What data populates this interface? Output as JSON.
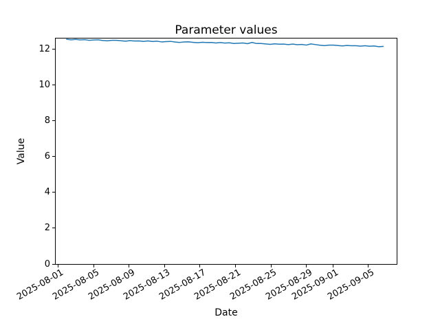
{
  "figure": {
    "background_color": "#ffffff",
    "text_color": "#000000"
  },
  "chart_data": {
    "type": "line",
    "title": "Parameter values",
    "xlabel": "Date",
    "ylabel": "Value",
    "grid": false,
    "legend": false,
    "x_day_reference": "2025-08-01",
    "x_start_date": "2025-08-02",
    "x_end_date": "2025-09-06",
    "xlim_days": [
      -0.23,
      38.22
    ],
    "ylim": [
      0,
      12.615
    ],
    "y_ticks": [
      {
        "value": 0,
        "label": "0"
      },
      {
        "value": 2,
        "label": "2"
      },
      {
        "value": 4,
        "label": "4"
      },
      {
        "value": 6,
        "label": "6"
      },
      {
        "value": 8,
        "label": "8"
      },
      {
        "value": 10,
        "label": "10"
      },
      {
        "value": 12,
        "label": "12"
      }
    ],
    "x_ticks": [
      {
        "day": 0,
        "label": "2025-08-01"
      },
      {
        "day": 4,
        "label": "2025-08-05"
      },
      {
        "day": 8,
        "label": "2025-08-09"
      },
      {
        "day": 12,
        "label": "2025-08-13"
      },
      {
        "day": 16,
        "label": "2025-08-17"
      },
      {
        "day": 20,
        "label": "2025-08-21"
      },
      {
        "day": 24,
        "label": "2025-08-25"
      },
      {
        "day": 28,
        "label": "2025-08-29"
      },
      {
        "day": 31,
        "label": "2025-09-01"
      },
      {
        "day": 35,
        "label": "2025-09-05"
      }
    ],
    "series": [
      {
        "name": "parameter-values-line",
        "color": "#1f77b4",
        "x_days": [
          1.0,
          1.51,
          2.02,
          2.53,
          3.04,
          3.55,
          4.06,
          4.57,
          5.08,
          5.59,
          6.1,
          6.61,
          7.12,
          7.63,
          8.14,
          8.65,
          9.16,
          9.67,
          10.18,
          10.69,
          11.2,
          11.71,
          12.22,
          12.73,
          13.24,
          13.75,
          14.26,
          14.77,
          15.28,
          15.79,
          16.3,
          16.81,
          17.32,
          17.83,
          18.34,
          18.85,
          19.36,
          19.87,
          20.38,
          20.89,
          21.4,
          21.91,
          22.42,
          22.93,
          23.44,
          23.95,
          24.46,
          24.97,
          25.48,
          25.99,
          26.5,
          27.01,
          27.52,
          28.03,
          28.54,
          29.05,
          29.56,
          30.07,
          30.58,
          31.09,
          31.6,
          32.11,
          32.62,
          33.13,
          33.64,
          34.15,
          34.66,
          35.17,
          35.68,
          36.19,
          36.7
        ],
        "values": [
          12.57,
          12.542,
          12.569,
          12.537,
          12.553,
          12.514,
          12.531,
          12.543,
          12.505,
          12.485,
          12.512,
          12.515,
          12.489,
          12.468,
          12.494,
          12.476,
          12.481,
          12.453,
          12.48,
          12.448,
          12.464,
          12.425,
          12.441,
          12.454,
          12.416,
          12.396,
          12.423,
          12.426,
          12.4,
          12.378,
          12.405,
          12.387,
          12.392,
          12.364,
          12.391,
          12.359,
          12.374,
          12.336,
          12.352,
          12.365,
          12.327,
          12.395,
          12.334,
          12.336,
          12.311,
          12.289,
          12.316,
          12.298,
          12.303,
          12.275,
          12.301,
          12.27,
          12.285,
          12.247,
          12.313,
          12.276,
          12.238,
          12.217,
          12.245,
          12.247,
          12.222,
          12.2,
          12.227,
          12.209,
          12.213,
          12.186,
          12.212,
          12.181,
          12.196,
          12.158,
          12.174
        ]
      }
    ]
  }
}
